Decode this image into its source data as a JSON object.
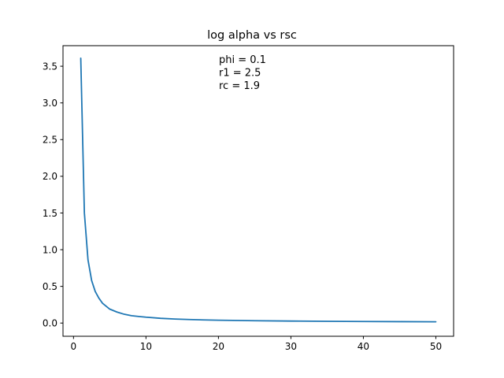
{
  "chart_data": {
    "type": "line",
    "title": "log alpha vs rsc",
    "xlabel": "",
    "ylabel": "",
    "xlim": [
      -1.45,
      52.45
    ],
    "ylim": [
      -0.18,
      3.78
    ],
    "xticks": [
      0,
      10,
      20,
      30,
      40,
      50
    ],
    "yticks": [
      0.0,
      0.5,
      1.0,
      1.5,
      2.0,
      2.5,
      3.0,
      3.5
    ],
    "xtick_labels": [
      "0",
      "10",
      "20",
      "30",
      "40",
      "50"
    ],
    "ytick_labels": [
      "0.0",
      "0.5",
      "1.0",
      "1.5",
      "2.0",
      "2.5",
      "3.0",
      "3.5"
    ],
    "grid": false,
    "line_color": "#1f77b4",
    "annotations": [
      "phi = 0.1",
      "r1 = 2.5",
      "rc = 1.9"
    ],
    "series": [
      {
        "x": [
          1.0,
          1.5,
          2.0,
          2.5,
          3.0,
          3.5,
          4.0,
          4.5,
          5.0,
          6.0,
          7.0,
          8.0,
          9.0,
          10.0,
          12.0,
          14.0,
          16.0,
          18.0,
          20.0,
          25.0,
          30.0,
          35.0,
          40.0,
          45.0,
          50.0
        ],
        "y": [
          3.61,
          1.5,
          0.86,
          0.58,
          0.43,
          0.34,
          0.27,
          0.23,
          0.19,
          0.15,
          0.12,
          0.1,
          0.09,
          0.08,
          0.065,
          0.055,
          0.048,
          0.043,
          0.039,
          0.032,
          0.027,
          0.024,
          0.021,
          0.019,
          0.017
        ]
      }
    ]
  }
}
